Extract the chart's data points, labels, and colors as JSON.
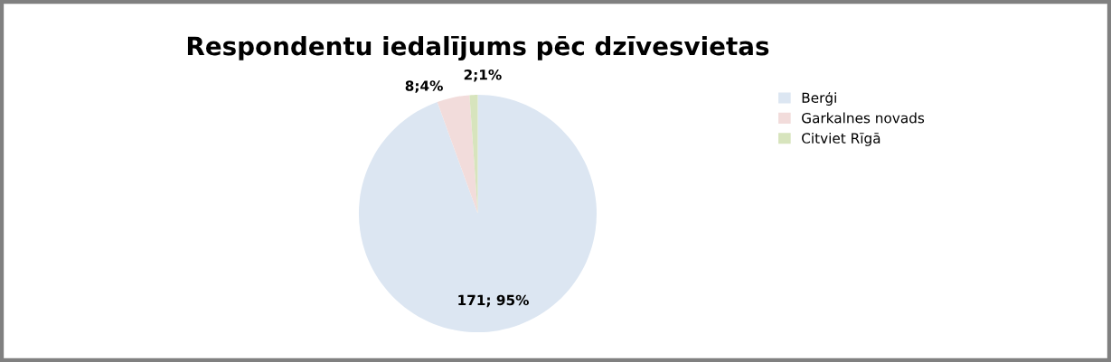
{
  "chart_data": {
    "type": "pie",
    "title": "Respondentu iedalījums pēc dzīvesvietas",
    "categories": [
      "Berģi",
      "Garkalnes novads",
      "Citviet Rīgā"
    ],
    "values": [
      171,
      8,
      2
    ],
    "colors": [
      "#dce6f2",
      "#f2dcdb",
      "#d7e4bd"
    ],
    "value_labels": [
      "171; 95%",
      "8;4%",
      "2;1%"
    ],
    "legend": "right"
  }
}
